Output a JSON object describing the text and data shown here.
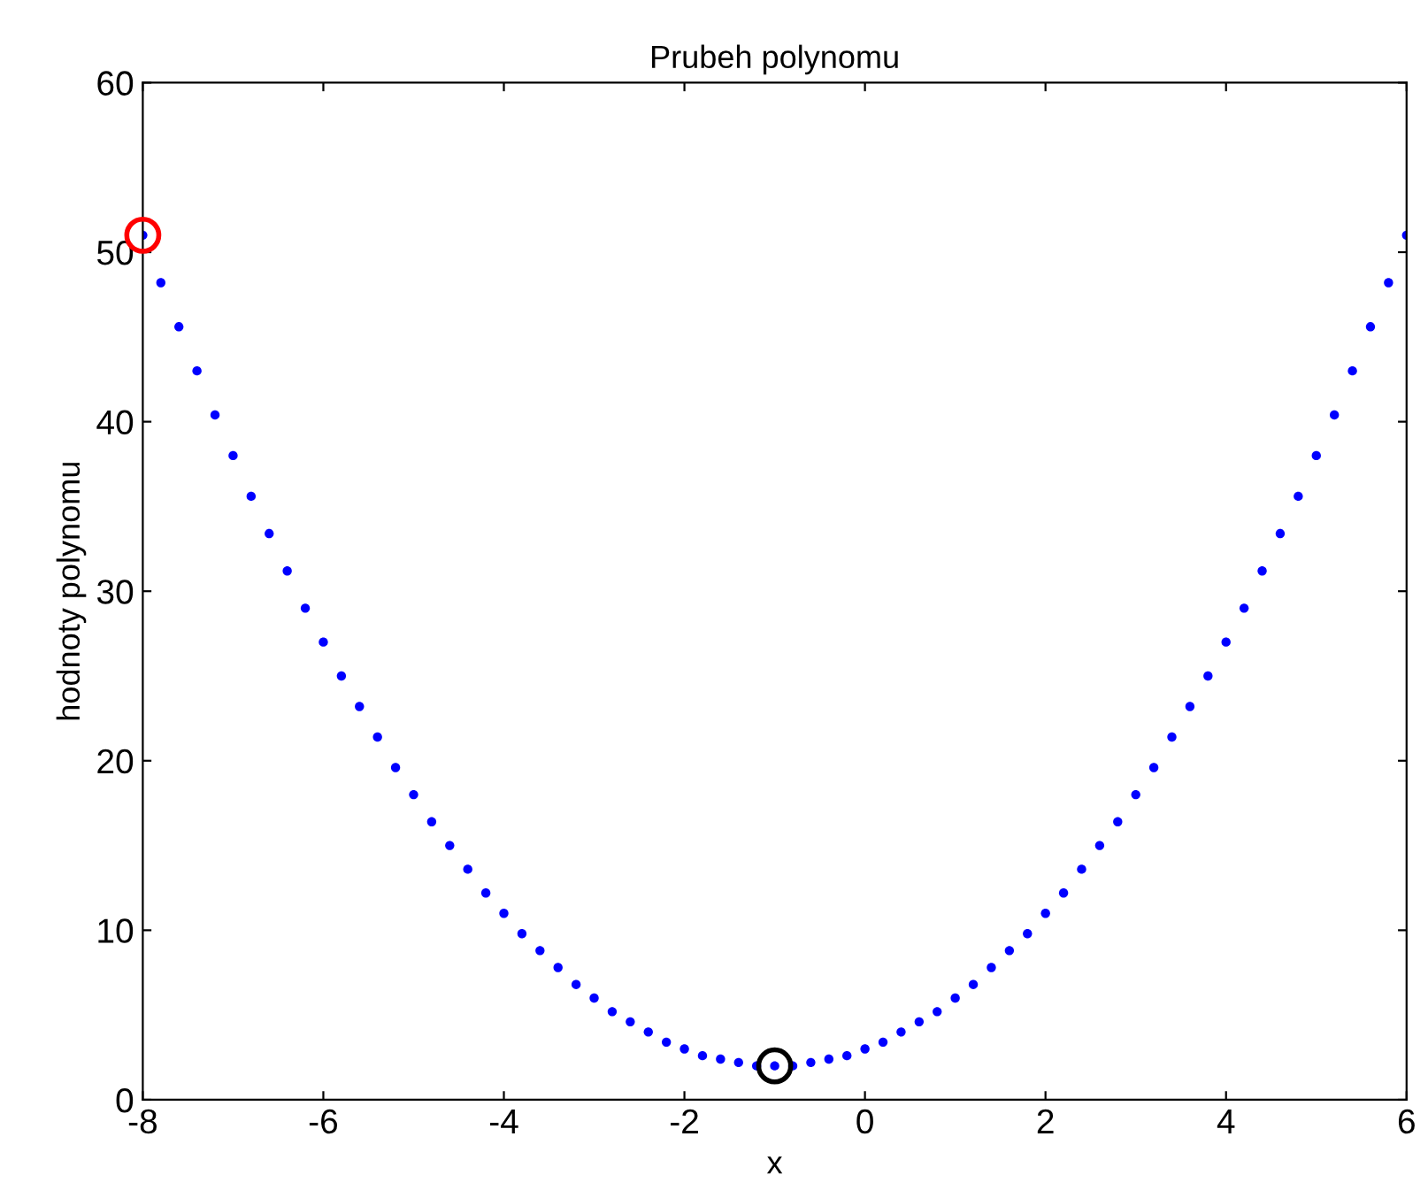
{
  "chart_data": {
    "type": "scatter",
    "title": "Prubeh polynomu",
    "xlabel": "x",
    "ylabel": "hodnoty polynomu",
    "xlim": [
      -8,
      6
    ],
    "xticks": [
      -8,
      -6,
      -4,
      -2,
      0,
      2,
      4,
      6
    ],
    "ylim": [
      0,
      60
    ],
    "yticks": [
      0,
      10,
      20,
      30,
      40,
      50,
      60
    ],
    "grid": false,
    "legend": false,
    "marker": "circle",
    "series": [
      {
        "color": "#0000ff",
        "x": [
          -8,
          -7.8,
          -7.6,
          -7.4,
          -7.2,
          -7,
          -6.8,
          -6.6,
          -6.4,
          -6.2,
          -6,
          -5.8,
          -5.6,
          -5.4,
          -5.2,
          -5,
          -4.8,
          -4.6,
          -4.4,
          -4.2,
          -4,
          -3.8,
          -3.6,
          -3.4,
          -3.2,
          -3,
          -2.8,
          -2.6,
          -2.4,
          -2.2,
          -2,
          -1.8,
          -1.6,
          -1.4,
          -1.2,
          -1,
          -0.8,
          -0.6,
          -0.4,
          -0.2,
          0,
          0.2,
          0.4,
          0.6,
          0.8,
          1,
          1.2,
          1.4,
          1.6,
          1.8,
          2,
          2.2,
          2.4,
          2.6,
          2.8,
          3,
          3.2,
          3.4,
          3.6,
          3.8,
          4,
          4.2,
          4.4,
          4.6,
          4.8,
          5,
          5.2,
          5.4,
          5.6,
          5.8,
          6
        ],
        "values": [
          51,
          48.2,
          45.6,
          43,
          40.4,
          38,
          35.6,
          33.4,
          31.2,
          29,
          27,
          25,
          23.2,
          21.4,
          19.6,
          18,
          16.4,
          15,
          13.6,
          12.2,
          11,
          9.8,
          8.8,
          7.8,
          6.8,
          6,
          5.2,
          4.6,
          4,
          3.4,
          3,
          2.6,
          2.4,
          2.2,
          2,
          2,
          2,
          2.2,
          2.4,
          2.6,
          3,
          3.4,
          4,
          4.6,
          5.2,
          6,
          6.8,
          7.8,
          8.8,
          9.8,
          11,
          12.2,
          13.6,
          15,
          16.4,
          18,
          19.6,
          21.4,
          23.2,
          25,
          27,
          29,
          31.2,
          33.4,
          35.6,
          38,
          40.4,
          43,
          45.6,
          48.2,
          51
        ]
      },
      {
        "color": "#ff0000",
        "x": [
          -8
        ],
        "values": [
          51
        ]
      },
      {
        "color": "#000000",
        "x": [
          -1
        ],
        "values": [
          2
        ]
      }
    ]
  }
}
